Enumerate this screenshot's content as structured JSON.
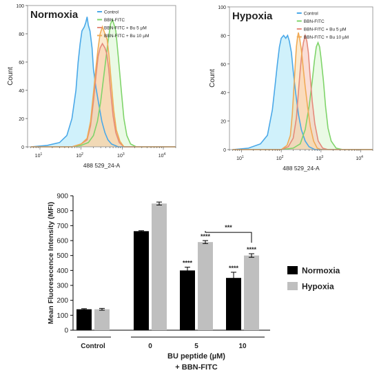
{
  "chart_data": [
    {
      "type": "area",
      "title": "Normoxia",
      "xlabel": "488 529_24-A",
      "ylabel": "Count",
      "x_scale": "log",
      "xlim": [
        5,
        20000
      ],
      "ylim": [
        0,
        100
      ],
      "x_ticks": [
        {
          "base": "10",
          "exp": "1",
          "value": 10
        },
        {
          "base": "10",
          "exp": "2",
          "value": 100
        },
        {
          "base": "10",
          "exp": "3",
          "value": 1000
        },
        {
          "base": "10",
          "exp": "4",
          "value": 10000
        }
      ],
      "y_ticks": [
        "0",
        "20",
        "40",
        "60",
        "80",
        "100"
      ],
      "legend_position": "top-right",
      "series": [
        {
          "name": "Control",
          "color": "#4aa8e8",
          "fill": "#a9e6f7",
          "points": [
            [
              6,
              0
            ],
            [
              15,
              1
            ],
            [
              30,
              3
            ],
            [
              45,
              8
            ],
            [
              60,
              20
            ],
            [
              75,
              40
            ],
            [
              85,
              60
            ],
            [
              95,
              73
            ],
            [
              105,
              82
            ],
            [
              120,
              85
            ],
            [
              130,
              88
            ],
            [
              140,
              92
            ],
            [
              150,
              86
            ],
            [
              165,
              82
            ],
            [
              185,
              70
            ],
            [
              200,
              55
            ],
            [
              230,
              42
            ],
            [
              270,
              30
            ],
            [
              320,
              18
            ],
            [
              380,
              10
            ],
            [
              450,
              5
            ],
            [
              550,
              2
            ],
            [
              800,
              0
            ],
            [
              20000,
              0
            ]
          ]
        },
        {
          "name": "BBN-FITC",
          "color": "#7fd46a",
          "fill": "#d8f5cf",
          "points": [
            [
              6,
              0
            ],
            [
              60,
              0
            ],
            [
              100,
              1
            ],
            [
              150,
              3
            ],
            [
              200,
              8
            ],
            [
              250,
              18
            ],
            [
              300,
              32
            ],
            [
              350,
              48
            ],
            [
              400,
              62
            ],
            [
              460,
              76
            ],
            [
              520,
              87
            ],
            [
              580,
              90
            ],
            [
              640,
              86
            ],
            [
              700,
              82
            ],
            [
              800,
              64
            ],
            [
              950,
              40
            ],
            [
              1100,
              20
            ],
            [
              1300,
              8
            ],
            [
              1600,
              2
            ],
            [
              2200,
              0
            ],
            [
              20000,
              0
            ]
          ]
        },
        {
          "name": "BBN-FITC + Bu 5 µM",
          "color": "#e58a7a",
          "fill": "#f5c3b6",
          "points": [
            [
              6,
              0
            ],
            [
              60,
              0
            ],
            [
              100,
              2
            ],
            [
              140,
              5
            ],
            [
              170,
              15
            ],
            [
              200,
              32
            ],
            [
              230,
              50
            ],
            [
              260,
              64
            ],
            [
              290,
              70
            ],
            [
              330,
              73
            ],
            [
              380,
              70
            ],
            [
              420,
              66
            ],
            [
              470,
              55
            ],
            [
              520,
              40
            ],
            [
              600,
              22
            ],
            [
              700,
              10
            ],
            [
              850,
              3
            ],
            [
              1100,
              0
            ],
            [
              20000,
              0
            ]
          ]
        },
        {
          "name": "BBN-FITC + Bu 10 µM",
          "color": "#f0aa55",
          "fill": "#f9d8a6",
          "points": [
            [
              6,
              0
            ],
            [
              60,
              0
            ],
            [
              100,
              2
            ],
            [
              140,
              6
            ],
            [
              170,
              18
            ],
            [
              200,
              38
            ],
            [
              230,
              56
            ],
            [
              260,
              70
            ],
            [
              290,
              80
            ],
            [
              330,
              85
            ],
            [
              380,
              80
            ],
            [
              430,
              76
            ],
            [
              480,
              64
            ],
            [
              540,
              46
            ],
            [
              620,
              26
            ],
            [
              720,
              12
            ],
            [
              880,
              4
            ],
            [
              1100,
              0
            ],
            [
              20000,
              0
            ]
          ]
        }
      ]
    },
    {
      "type": "area",
      "title": "Hypoxia",
      "xlabel": "488 529_24-A",
      "ylabel": "Count",
      "x_scale": "log",
      "xlim": [
        5,
        20000
      ],
      "ylim": [
        0,
        100
      ],
      "x_ticks": [
        {
          "base": "10",
          "exp": "1",
          "value": 10
        },
        {
          "base": "10",
          "exp": "2",
          "value": 100
        },
        {
          "base": "10",
          "exp": "3",
          "value": 1000
        },
        {
          "base": "10",
          "exp": "4",
          "value": 10000
        }
      ],
      "y_ticks": [
        "0",
        "20",
        "40",
        "60",
        "80",
        "100"
      ],
      "legend_position": "top-right",
      "series": [
        {
          "name": "Control",
          "color": "#4aa8e8",
          "fill": "#a9e6f7",
          "points": [
            [
              6,
              0
            ],
            [
              15,
              1
            ],
            [
              30,
              4
            ],
            [
              45,
              10
            ],
            [
              60,
              28
            ],
            [
              70,
              45
            ],
            [
              80,
              60
            ],
            [
              90,
              72
            ],
            [
              100,
              78
            ],
            [
              115,
              80
            ],
            [
              130,
              78
            ],
            [
              145,
              80
            ],
            [
              160,
              76
            ],
            [
              180,
              68
            ],
            [
              200,
              55
            ],
            [
              230,
              40
            ],
            [
              270,
              25
            ],
            [
              320,
              14
            ],
            [
              400,
              6
            ],
            [
              500,
              2
            ],
            [
              700,
              0
            ],
            [
              20000,
              0
            ]
          ]
        },
        {
          "name": "BBN-FITC",
          "color": "#7fd46a",
          "fill": "#d8f5cf",
          "points": [
            [
              6,
              0
            ],
            [
              100,
              0
            ],
            [
              200,
              1
            ],
            [
              300,
              4
            ],
            [
              400,
              14
            ],
            [
              500,
              30
            ],
            [
              600,
              48
            ],
            [
              680,
              62
            ],
            [
              760,
              72
            ],
            [
              840,
              75
            ],
            [
              920,
              72
            ],
            [
              1000,
              64
            ],
            [
              1150,
              48
            ],
            [
              1300,
              30
            ],
            [
              1500,
              15
            ],
            [
              1800,
              6
            ],
            [
              2400,
              1
            ],
            [
              3500,
              0
            ],
            [
              20000,
              0
            ]
          ]
        },
        {
          "name": "BBN-FITC + Bu 5 µM",
          "color": "#e58a7a",
          "fill": "#f5c3b6",
          "points": [
            [
              6,
              0
            ],
            [
              100,
              0
            ],
            [
              150,
              2
            ],
            [
              200,
              8
            ],
            [
              240,
              22
            ],
            [
              270,
              40
            ],
            [
              300,
              56
            ],
            [
              330,
              68
            ],
            [
              360,
              75
            ],
            [
              400,
              80
            ],
            [
              440,
              76
            ],
            [
              480,
              68
            ],
            [
              530,
              52
            ],
            [
              600,
              34
            ],
            [
              700,
              18
            ],
            [
              850,
              6
            ],
            [
              1100,
              1
            ],
            [
              1500,
              0
            ],
            [
              20000,
              0
            ]
          ]
        },
        {
          "name": "BBN-FITC + Bu 10 µM",
          "color": "#f0aa55",
          "fill": "#f9d8a6",
          "points": [
            [
              6,
              0
            ],
            [
              100,
              0
            ],
            [
              140,
              3
            ],
            [
              170,
              10
            ],
            [
              190,
              25
            ],
            [
              210,
              45
            ],
            [
              225,
              60
            ],
            [
              240,
              72
            ],
            [
              255,
              78
            ],
            [
              270,
              82
            ],
            [
              290,
              78
            ],
            [
              320,
              70
            ],
            [
              360,
              56
            ],
            [
              400,
              44
            ],
            [
              460,
              30
            ],
            [
              540,
              16
            ],
            [
              650,
              6
            ],
            [
              800,
              1
            ],
            [
              1000,
              0
            ],
            [
              20000,
              0
            ]
          ]
        }
      ]
    },
    {
      "type": "bar",
      "ylabel": "Mean Fluoresecence Intensity (MFI)",
      "xlabel_line1": "BU peptide (µM)",
      "xlabel_line2": "+ BBN-FITC",
      "categories": [
        "Control",
        "0",
        "5",
        "10"
      ],
      "category_groups": [
        {
          "label": "Control",
          "from": 0,
          "to": 0
        },
        {
          "label": "",
          "from": 1,
          "to": 3
        }
      ],
      "ylim": [
        0,
        900
      ],
      "y_ticks": [
        "0",
        "100",
        "200",
        "300",
        "400",
        "500",
        "600",
        "700",
        "800",
        "900"
      ],
      "legend_position": "right",
      "series": [
        {
          "name": "Normoxia",
          "color": "#000000",
          "values": [
            140,
            663,
            400,
            350
          ],
          "errors": [
            4,
            3,
            22,
            38
          ],
          "annotations": [
            "",
            "",
            "****",
            "****"
          ]
        },
        {
          "name": "Hypoxia",
          "color": "#bfbfbf",
          "values": [
            140,
            848,
            590,
            500
          ],
          "errors": [
            6,
            10,
            10,
            12
          ],
          "annotations": [
            "",
            "",
            "****",
            "****"
          ]
        }
      ],
      "bracket": {
        "from_series": 1,
        "from_category": 2,
        "to_category": 3,
        "label": "***",
        "y": 655
      }
    }
  ]
}
